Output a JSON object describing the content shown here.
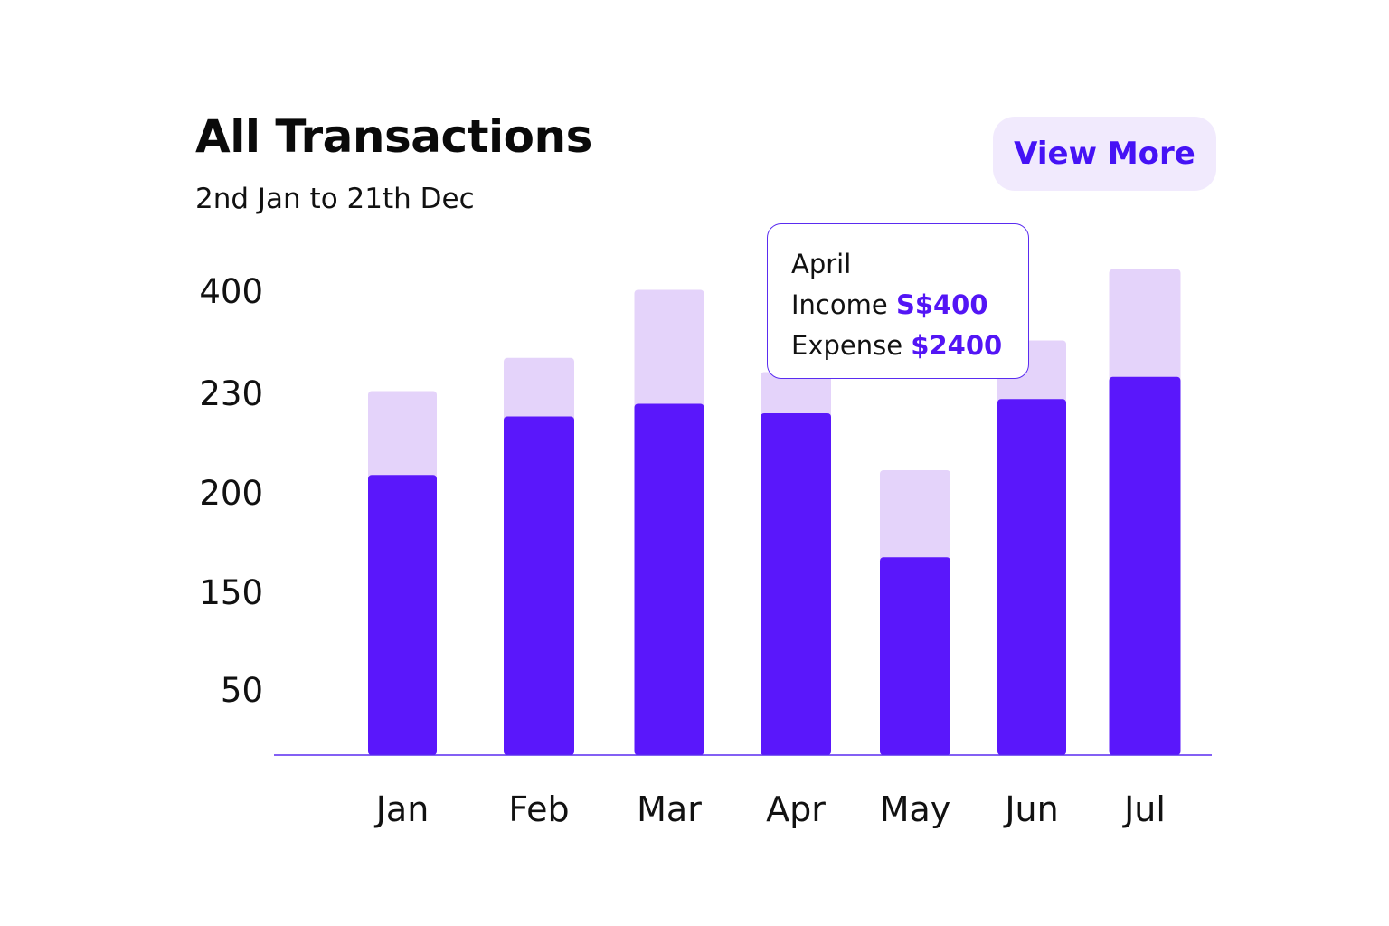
{
  "header": {
    "title": "All Transactions",
    "subtitle": "2nd Jan to 21th Dec",
    "view_more_label": "View More"
  },
  "tooltip": {
    "month": "April",
    "income_label": "Income",
    "income_value": "S$400",
    "expense_label": "Expense",
    "expense_value": "$2400"
  },
  "colors": {
    "income": "#5a17fb",
    "expense": "#e4d3fa",
    "accent": "#4512f5",
    "axis": "#5a2cf0"
  },
  "chart_data": {
    "type": "bar",
    "stacked": true,
    "title": "All Transactions",
    "subtitle": "2nd Jan to 21th Dec",
    "categories": [
      "Jan",
      "Feb",
      "Mar",
      "Apr",
      "May",
      "Jun",
      "Jul"
    ],
    "y_tick_labels": [
      "400",
      "230",
      "200",
      "150",
      "50"
    ],
    "series": [
      {
        "values": [
          177,
          214,
          222,
          216,
          125,
          225,
          239
        ]
      },
      {
        "values": [
          230,
          251,
          294,
          242,
          180,
          262,
          307
        ]
      }
    ],
    "grid": false,
    "legend": "none"
  }
}
